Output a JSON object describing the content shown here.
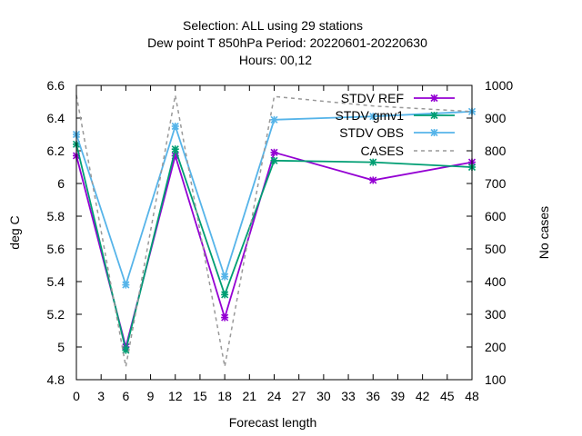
{
  "chart_data": {
    "type": "line",
    "title_lines": [
      "Selection: ALL using    29 stations",
      "Dew point T 850hPa   Period: 20220601-20220630",
      "Hours:  00,12"
    ],
    "xlabel": "Forecast length",
    "ylabel": "deg C",
    "y2label": "No cases",
    "x": [
      0,
      6,
      12,
      18,
      24,
      36,
      48
    ],
    "xlim": [
      0,
      48
    ],
    "xticks": [
      "0",
      "3",
      "6",
      "9",
      "12",
      "15",
      "18",
      "21",
      "24",
      "27",
      "30",
      "33",
      "36",
      "39",
      "42",
      "45",
      "48"
    ],
    "ylim": [
      4.8,
      6.6
    ],
    "yticks": [
      "4.8",
      "5",
      "5.2",
      "5.4",
      "5.6",
      "5.8",
      "6",
      "6.2",
      "6.4",
      "6.6"
    ],
    "y2lim": [
      100,
      1000
    ],
    "y2ticks": [
      "100",
      "200",
      "300",
      "400",
      "500",
      "600",
      "700",
      "800",
      "900",
      "1000"
    ],
    "legend_position": "top-right",
    "series": [
      {
        "name": "STDV REF",
        "color": "#9400d3",
        "marker": "x-cross",
        "axis": "y",
        "values": [
          6.17,
          5.0,
          6.17,
          5.18,
          6.19,
          6.02,
          6.13
        ]
      },
      {
        "name": "STDV gmv1",
        "color": "#009e73",
        "marker": "x-cross",
        "axis": "y",
        "values": [
          6.24,
          4.98,
          6.21,
          5.32,
          6.14,
          6.13,
          6.1
        ]
      },
      {
        "name": "STDV OBS",
        "color": "#56b4e9",
        "marker": "x-cross",
        "axis": "y",
        "values": [
          6.3,
          5.38,
          6.35,
          5.43,
          6.39,
          6.41,
          6.44
        ]
      },
      {
        "name": "CASES",
        "color": "#999999",
        "marker": "none",
        "dash": true,
        "axis": "y2",
        "values": [
          970,
          140,
          970,
          140,
          966,
          937,
          920
        ]
      }
    ]
  }
}
